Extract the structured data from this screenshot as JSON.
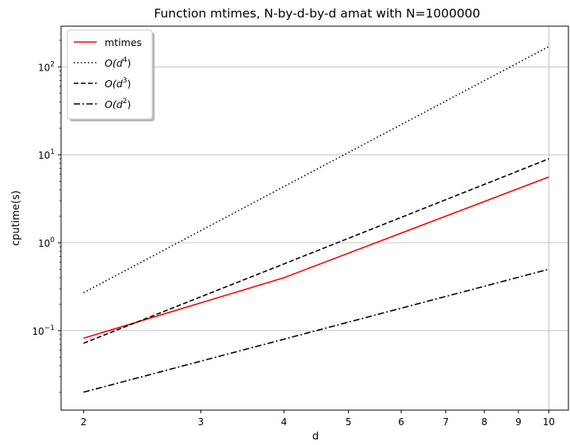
{
  "chart_data": {
    "type": "line",
    "title": "Function mtimes, N-by-d-by-d amat with N=1000000",
    "xlabel": "d",
    "ylabel": "cputime(s)",
    "xscale": "log",
    "yscale": "log",
    "xlim": [
      1.85,
      10.7
    ],
    "ylim": [
      0.0125,
      290
    ],
    "x": [
      2,
      4,
      10
    ],
    "xticks": [
      "2",
      "3",
      "4",
      "5",
      "6",
      "7",
      "8",
      "9",
      "10"
    ],
    "yticks": [
      {
        "base": "10",
        "exp": "−1"
      },
      {
        "base": "10",
        "exp": "0"
      },
      {
        "base": "10",
        "exp": "1"
      },
      {
        "base": "10",
        "exp": "2"
      }
    ],
    "grid": "major",
    "legend_position": "top-left",
    "series": [
      {
        "name": "mtimes",
        "values": [
          0.082,
          0.4,
          5.6
        ],
        "color": "#ff0000",
        "style": "solid"
      },
      {
        "name": "O(d^4)",
        "legend_main": "O(d",
        "legend_sup": "4",
        "legend_end": ")",
        "values": [
          0.27,
          4.35,
          170
        ],
        "color": "#000000",
        "style": "dotted"
      },
      {
        "name": "O(d^3)",
        "legend_main": "O(d",
        "legend_sup": "3",
        "legend_end": ")",
        "values": [
          0.072,
          0.575,
          9.0
        ],
        "color": "#000000",
        "style": "dashed"
      },
      {
        "name": "O(d^2)",
        "legend_main": "O(d",
        "legend_sup": "2",
        "legend_end": ")",
        "values": [
          0.02,
          0.08,
          0.5
        ],
        "color": "#000000",
        "style": "dashdot"
      }
    ]
  }
}
